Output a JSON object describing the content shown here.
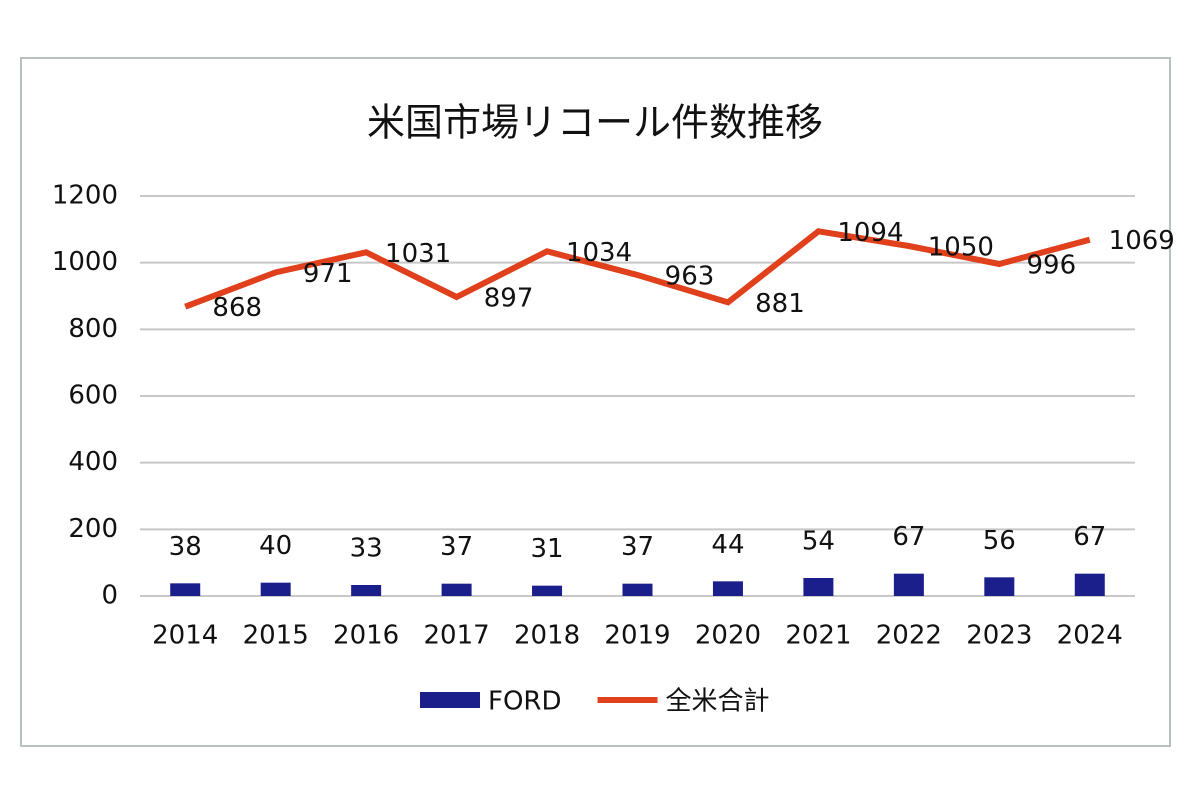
{
  "chart_data": {
    "type": "combo",
    "title": "米国市場リコール件数推移",
    "categories": [
      "2014",
      "2015",
      "2016",
      "2017",
      "2018",
      "2019",
      "2020",
      "2021",
      "2022",
      "2023",
      "2024"
    ],
    "series": [
      {
        "name": "FORD",
        "type": "bar",
        "color": "#1a1f8c",
        "values": [
          38,
          40,
          33,
          37,
          31,
          37,
          44,
          54,
          67,
          56,
          67
        ]
      },
      {
        "name": "全米合計",
        "type": "line",
        "color": "#e0401c",
        "values": [
          868,
          971,
          1031,
          897,
          1034,
          963,
          881,
          1094,
          1050,
          996,
          1069
        ]
      }
    ],
    "ylim": [
      0,
      1200
    ],
    "yticks": [
      0,
      200,
      400,
      600,
      800,
      1000,
      1200
    ],
    "grid": true,
    "legend": "bottom"
  }
}
